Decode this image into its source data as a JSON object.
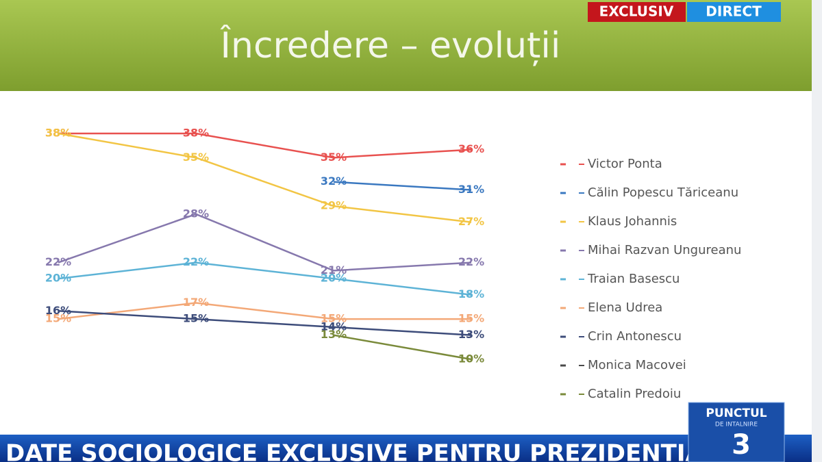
{
  "badges": {
    "exclusive": "EXCLUSIV",
    "live": "DIRECT"
  },
  "ticker": "DATE SOCIOLOGICE EXCLUSIVE PENTRU PREZIDENTIALE",
  "logo": {
    "line1": "PUNCTUL",
    "line2": "DE INTALNIRE",
    "number": "3"
  },
  "chart_data": {
    "type": "line",
    "title": "Încredere – evoluții",
    "categories": [
      null,
      null,
      null,
      null
    ],
    "series": [
      {
        "name": "Victor Ponta",
        "color": "#e8514f",
        "values": [
          38,
          38,
          35,
          36
        ],
        "value_labels": [
          "38%",
          "38%",
          "35%",
          "36%"
        ]
      },
      {
        "name": "Călin Popescu Tăriceanu",
        "color": "#3a78c0",
        "values": [
          null,
          null,
          32,
          31
        ],
        "value_labels": [
          null,
          null,
          "32%",
          "31%"
        ]
      },
      {
        "name": "Klaus Johannis",
        "color": "#f2c544",
        "values": [
          38,
          35,
          29,
          27
        ],
        "value_labels": [
          "38%",
          "35%",
          "29%",
          "27%"
        ]
      },
      {
        "name": "Mihai Razvan Ungureanu",
        "color": "#8678ad",
        "values": [
          22,
          28,
          21,
          22
        ],
        "value_labels": [
          "22%",
          "28%",
          "21%",
          "22%"
        ]
      },
      {
        "name": "Traian Basescu",
        "color": "#5db3d6",
        "values": [
          20,
          22,
          20,
          18
        ],
        "value_labels": [
          "20%",
          "22%",
          "20%",
          "18%"
        ]
      },
      {
        "name": "Elena Udrea",
        "color": "#f3a877",
        "values": [
          15,
          17,
          15,
          15
        ],
        "value_labels": [
          "15%",
          "17%",
          "15%",
          "15%"
        ]
      },
      {
        "name": "Crin Antonescu",
        "color": "#3d4c7a",
        "values": [
          16,
          15,
          14,
          13
        ],
        "value_labels": [
          "16%",
          "15%",
          "14%",
          "13%"
        ]
      },
      {
        "name": "Monica Macovei",
        "color": "#4a4a4a",
        "values": [
          null,
          null,
          null,
          null
        ]
      },
      {
        "name": "Catalin Predoiu",
        "color": "#7a8a3a",
        "values": [
          null,
          null,
          13,
          10
        ],
        "value_labels": [
          null,
          null,
          "13%",
          "10%"
        ]
      }
    ],
    "legend": "right"
  }
}
